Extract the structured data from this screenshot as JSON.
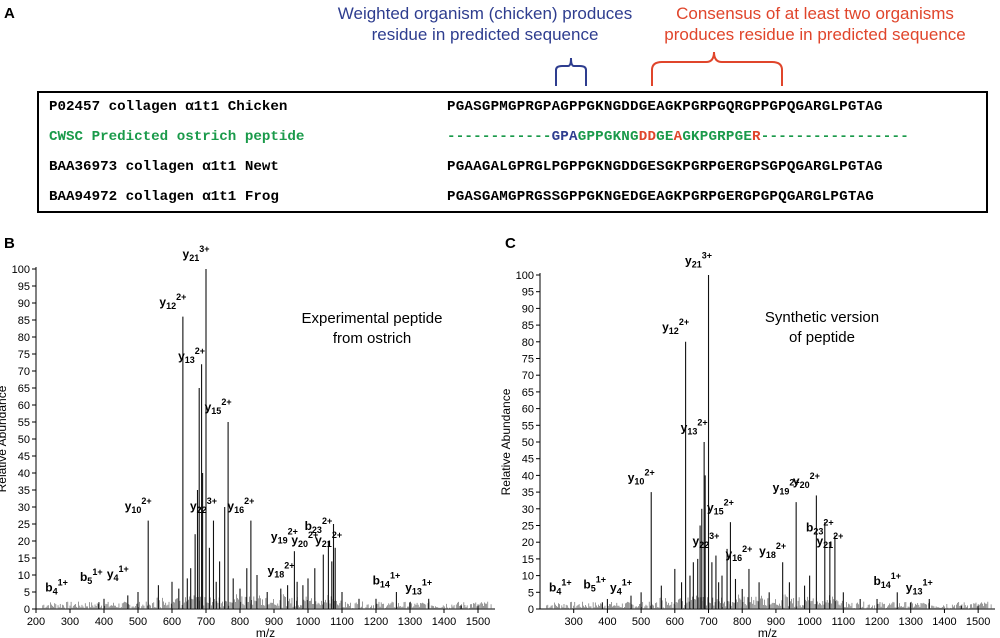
{
  "panels": {
    "a": "A",
    "b": "B",
    "c": "C"
  },
  "annotations": {
    "blue_note": [
      "Weighted organism (chicken) produces",
      "residue in predicted sequence"
    ],
    "red_note": [
      "Consensus of at least two organisms",
      "produces residue in predicted sequence"
    ]
  },
  "colors": {
    "blue": "#2e3d8f",
    "red": "#e0452b",
    "green": "#1a9a4a"
  },
  "alignment": {
    "rows": [
      {
        "label": "P02457 collagen α1t1 Chicken",
        "segments": [
          {
            "text": "PGASGPMGPRGPAGPPGKNGDDGEAGKPGRPGQRGPPGPQGARGLPGTAG",
            "color": "black"
          }
        ]
      },
      {
        "label": "CWSC Predicted ostrich peptide",
        "label_color": "green",
        "segments": [
          {
            "text": "------------",
            "color": "green"
          },
          {
            "text": "GPA",
            "color": "blue"
          },
          {
            "text": "GPPGKNG",
            "color": "green"
          },
          {
            "text": "DD",
            "color": "red"
          },
          {
            "text": "GE",
            "color": "green"
          },
          {
            "text": "A",
            "color": "red"
          },
          {
            "text": "GKPGRPGE",
            "color": "green"
          },
          {
            "text": "R",
            "color": "red"
          },
          {
            "text": "-----------------",
            "color": "green"
          }
        ]
      },
      {
        "label": "BAA36973 collagen α1t1 Newt",
        "segments": [
          {
            "text": "PGAAGALGPRGLPGPPGKNGDDGESGKPGRPGERGPSGPQGARGLPGTAG",
            "color": "black"
          }
        ]
      },
      {
        "label": "BAA94972 collagen α1t1 Frog",
        "segments": [
          {
            "text": "PGASGAMGPRGSSGPPGKNGEDGEAGKPGRPGERGPGPQGARGLPGTAG",
            "color": "black"
          }
        ]
      }
    ]
  },
  "chart_data": [
    {
      "type": "bar",
      "title": "Experimental peptide\nfrom ostrich",
      "xlabel": "m/z",
      "ylabel": "Relative Abundance",
      "xlim": [
        200,
        1550
      ],
      "ylim": [
        0,
        100
      ],
      "xticks": [
        200,
        300,
        400,
        500,
        600,
        700,
        800,
        900,
        1000,
        1100,
        1200,
        1300,
        1400,
        1500
      ],
      "yticks": [
        0,
        5,
        10,
        15,
        20,
        25,
        30,
        35,
        40,
        45,
        50,
        55,
        60,
        65,
        70,
        75,
        80,
        85,
        90,
        95,
        100
      ],
      "peaks": [
        [
          632,
          86
        ],
        [
          700,
          100
        ],
        [
          687,
          72
        ],
        [
          680,
          65
        ],
        [
          765,
          55
        ],
        [
          755,
          30
        ],
        [
          722,
          26
        ],
        [
          530,
          26
        ],
        [
          832,
          26
        ],
        [
          675,
          35
        ],
        [
          668,
          22
        ],
        [
          690,
          40
        ],
        [
          710,
          18
        ],
        [
          740,
          14
        ],
        [
          820,
          12
        ],
        [
          850,
          10
        ],
        [
          960,
          17
        ],
        [
          968,
          8
        ],
        [
          1020,
          12
        ],
        [
          1045,
          16
        ],
        [
          1060,
          20
        ],
        [
          1075,
          25
        ],
        [
          1080,
          18
        ],
        [
          1070,
          14
        ],
        [
          985,
          7
        ],
        [
          1000,
          9
        ],
        [
          600,
          8
        ],
        [
          560,
          7
        ],
        [
          500,
          5
        ],
        [
          470,
          4
        ],
        [
          400,
          3
        ],
        [
          385,
          2
        ],
        [
          620,
          6
        ],
        [
          645,
          9
        ],
        [
          655,
          12
        ],
        [
          730,
          8
        ],
        [
          780,
          9
        ],
        [
          800,
          6
        ],
        [
          880,
          5
        ],
        [
          920,
          6
        ],
        [
          940,
          7
        ],
        [
          1100,
          5
        ],
        [
          1150,
          3
        ],
        [
          1200,
          3
        ],
        [
          1260,
          5
        ],
        [
          1355,
          3
        ],
        [
          1300,
          2
        ],
        [
          1450,
          1
        ],
        [
          1500,
          1
        ]
      ],
      "ion_labels": [
        {
          "ion": "b",
          "num": "4",
          "charge": "1+",
          "mz": 290,
          "y": 4
        },
        {
          "ion": "b",
          "num": "5",
          "charge": "1+",
          "mz": 392,
          "y": 7
        },
        {
          "ion": "y",
          "num": "4",
          "charge": "1+",
          "mz": 470,
          "y": 8
        },
        {
          "ion": "y",
          "num": "10",
          "charge": "2+",
          "mz": 530,
          "y": 28
        },
        {
          "ion": "y",
          "num": "12",
          "charge": "2+",
          "mz": 632,
          "y": 88
        },
        {
          "ion": "y",
          "num": "21",
          "charge": "3+",
          "mz": 700,
          "y": 102
        },
        {
          "ion": "y",
          "num": "13",
          "charge": "2+",
          "mz": 687,
          "y": 72
        },
        {
          "ion": "y",
          "num": "15",
          "charge": "2+",
          "mz": 765,
          "y": 57
        },
        {
          "ion": "y",
          "num": "22",
          "charge": "3+",
          "mz": 722,
          "y": 28
        },
        {
          "ion": "y",
          "num": "16",
          "charge": "2+",
          "mz": 832,
          "y": 28
        },
        {
          "ion": "y",
          "num": "19",
          "charge": "2+",
          "mz": 960,
          "y": 19
        },
        {
          "ion": "y",
          "num": "18",
          "charge": "2+",
          "mz": 950,
          "y": 9
        },
        {
          "ion": "y",
          "num": "20",
          "charge": "2+",
          "mz": 1020,
          "y": 18
        },
        {
          "ion": "b",
          "num": "23",
          "charge": "2+",
          "mz": 1060,
          "y": 22
        },
        {
          "ion": "y",
          "num": "21",
          "charge": "2+",
          "mz": 1090,
          "y": 18
        },
        {
          "ion": "b",
          "num": "14",
          "charge": "1+",
          "mz": 1260,
          "y": 6
        },
        {
          "ion": "y",
          "num": "13",
          "charge": "1+",
          "mz": 1355,
          "y": 4
        }
      ]
    },
    {
      "type": "bar",
      "title": "Synthetic version\nof peptide",
      "xlabel": "m/z",
      "ylabel": "Relative Abundance",
      "xlim": [
        200,
        1550
      ],
      "ylim": [
        0,
        100
      ],
      "xticks": [
        300,
        400,
        500,
        600,
        700,
        800,
        900,
        1000,
        1100,
        1200,
        1300,
        1400,
        1500
      ],
      "yticks": [
        0,
        5,
        10,
        15,
        20,
        25,
        30,
        35,
        40,
        45,
        50,
        55,
        60,
        65,
        70,
        75,
        80,
        85,
        90,
        95,
        100
      ],
      "peaks": [
        [
          632,
          80
        ],
        [
          700,
          100
        ],
        [
          687,
          50
        ],
        [
          680,
          30
        ],
        [
          765,
          26
        ],
        [
          755,
          18
        ],
        [
          722,
          16
        ],
        [
          530,
          35
        ],
        [
          960,
          32
        ],
        [
          1020,
          34
        ],
        [
          1045,
          26
        ],
        [
          1060,
          20
        ],
        [
          1075,
          22
        ],
        [
          690,
          40
        ],
        [
          675,
          25
        ],
        [
          668,
          15
        ],
        [
          710,
          14
        ],
        [
          740,
          10
        ],
        [
          820,
          12
        ],
        [
          850,
          8
        ],
        [
          880,
          5
        ],
        [
          920,
          14
        ],
        [
          940,
          8
        ],
        [
          985,
          7
        ],
        [
          1000,
          10
        ],
        [
          600,
          12
        ],
        [
          560,
          7
        ],
        [
          500,
          5
        ],
        [
          470,
          4
        ],
        [
          400,
          3
        ],
        [
          385,
          2
        ],
        [
          620,
          8
        ],
        [
          645,
          10
        ],
        [
          655,
          14
        ],
        [
          730,
          8
        ],
        [
          780,
          9
        ],
        [
          800,
          6
        ],
        [
          1100,
          5
        ],
        [
          1150,
          3
        ],
        [
          1200,
          3
        ],
        [
          1260,
          5
        ],
        [
          1355,
          3
        ],
        [
          1300,
          2
        ],
        [
          1450,
          1
        ],
        [
          1500,
          1
        ]
      ],
      "ion_labels": [
        {
          "ion": "b",
          "num": "4",
          "charge": "1+",
          "mz": 290,
          "y": 4
        },
        {
          "ion": "b",
          "num": "5",
          "charge": "1+",
          "mz": 392,
          "y": 5
        },
        {
          "ion": "y",
          "num": "4",
          "charge": "1+",
          "mz": 470,
          "y": 4
        },
        {
          "ion": "y",
          "num": "10",
          "charge": "2+",
          "mz": 530,
          "y": 37
        },
        {
          "ion": "y",
          "num": "12",
          "charge": "2+",
          "mz": 632,
          "y": 82
        },
        {
          "ion": "y",
          "num": "21",
          "charge": "3+",
          "mz": 700,
          "y": 102
        },
        {
          "ion": "y",
          "num": "13",
          "charge": "2+",
          "mz": 687,
          "y": 52
        },
        {
          "ion": "y",
          "num": "15",
          "charge": "2+",
          "mz": 765,
          "y": 28
        },
        {
          "ion": "y",
          "num": "22",
          "charge": "3+",
          "mz": 722,
          "y": 18
        },
        {
          "ion": "y",
          "num": "16",
          "charge": "2+",
          "mz": 820,
          "y": 14
        },
        {
          "ion": "y",
          "num": "18",
          "charge": "2+",
          "mz": 920,
          "y": 15
        },
        {
          "ion": "y",
          "num": "19",
          "charge": "2+",
          "mz": 960,
          "y": 34
        },
        {
          "ion": "y",
          "num": "20",
          "charge": "2+",
          "mz": 1020,
          "y": 36
        },
        {
          "ion": "b",
          "num": "23",
          "charge": "2+",
          "mz": 1060,
          "y": 22
        },
        {
          "ion": "y",
          "num": "21",
          "charge": "2+",
          "mz": 1090,
          "y": 18
        },
        {
          "ion": "b",
          "num": "14",
          "charge": "1+",
          "mz": 1260,
          "y": 6
        },
        {
          "ion": "y",
          "num": "13",
          "charge": "1+",
          "mz": 1355,
          "y": 4
        }
      ]
    }
  ]
}
